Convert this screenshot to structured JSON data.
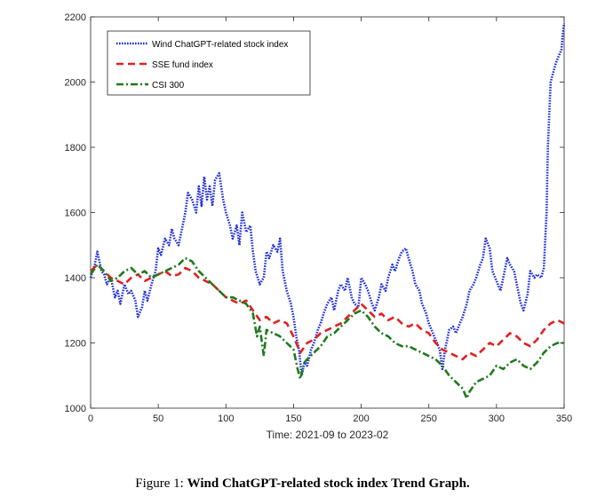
{
  "caption": {
    "prefix": "Figure 1:",
    "title": "Wind ChatGPT-related stock index Trend Graph."
  },
  "chart_data": {
    "type": "line",
    "title": "",
    "xlabel": "Time: 2021-09 to 2023-02",
    "ylabel": "",
    "xlim": [
      0,
      350
    ],
    "ylim": [
      1000,
      2200
    ],
    "xticks": [
      0,
      50,
      100,
      150,
      200,
      250,
      300,
      350
    ],
    "yticks": [
      1000,
      1200,
      1400,
      1600,
      1800,
      2000,
      2200
    ],
    "grid": false,
    "legend_position": "top-left",
    "series": [
      {
        "name": "Wind ChatGPT-related stock index",
        "color": "#1f2fd6",
        "dash": "dotted",
        "x": [
          0,
          3,
          5,
          8,
          10,
          12,
          15,
          18,
          20,
          22,
          25,
          28,
          30,
          33,
          35,
          38,
          40,
          42,
          45,
          48,
          50,
          52,
          55,
          58,
          60,
          62,
          65,
          68,
          70,
          72,
          75,
          78,
          80,
          82,
          84,
          86,
          88,
          90,
          92,
          95,
          98,
          100,
          103,
          105,
          108,
          110,
          112,
          115,
          118,
          120,
          122,
          125,
          128,
          130,
          132,
          135,
          138,
          140,
          142,
          145,
          148,
          150,
          152,
          154,
          156,
          158,
          160,
          163,
          165,
          168,
          170,
          173,
          175,
          178,
          180,
          183,
          185,
          188,
          190,
          193,
          195,
          198,
          200,
          203,
          205,
          208,
          210,
          213,
          215,
          218,
          220,
          223,
          225,
          228,
          230,
          233,
          235,
          238,
          240,
          243,
          245,
          248,
          250,
          253,
          255,
          258,
          260,
          262,
          265,
          268,
          270,
          273,
          275,
          278,
          280,
          283,
          285,
          288,
          290,
          292,
          295,
          297,
          300,
          303,
          305,
          308,
          310,
          313,
          315,
          318,
          320,
          323,
          325,
          328,
          330,
          333,
          335,
          337,
          338,
          340,
          342,
          344,
          346,
          348,
          349,
          350
        ],
        "values": [
          1400,
          1440,
          1480,
          1420,
          1410,
          1380,
          1400,
          1340,
          1360,
          1320,
          1380,
          1350,
          1360,
          1330,
          1280,
          1310,
          1360,
          1330,
          1380,
          1420,
          1490,
          1470,
          1520,
          1500,
          1550,
          1520,
          1500,
          1560,
          1600,
          1660,
          1640,
          1600,
          1680,
          1620,
          1710,
          1640,
          1680,
          1620,
          1700,
          1720,
          1640,
          1600,
          1560,
          1520,
          1560,
          1500,
          1600,
          1540,
          1560,
          1480,
          1420,
          1380,
          1400,
          1480,
          1460,
          1500,
          1480,
          1520,
          1420,
          1360,
          1320,
          1280,
          1220,
          1180,
          1100,
          1140,
          1130,
          1180,
          1200,
          1240,
          1260,
          1300,
          1320,
          1340,
          1300,
          1360,
          1380,
          1360,
          1400,
          1340,
          1320,
          1310,
          1400,
          1380,
          1360,
          1320,
          1300,
          1340,
          1380,
          1360,
          1400,
          1440,
          1420,
          1460,
          1480,
          1490,
          1460,
          1420,
          1380,
          1360,
          1320,
          1290,
          1260,
          1230,
          1210,
          1180,
          1120,
          1180,
          1240,
          1250,
          1230,
          1260,
          1280,
          1320,
          1360,
          1380,
          1400,
          1440,
          1460,
          1520,
          1490,
          1420,
          1390,
          1360,
          1400,
          1460,
          1440,
          1420,
          1380,
          1320,
          1300,
          1350,
          1420,
          1400,
          1410,
          1400,
          1430,
          1600,
          1800,
          2000,
          2030,
          2060,
          2080,
          2100,
          2150,
          2180
        ]
      },
      {
        "name": "SSE fund index",
        "color": "#e02020",
        "dash": "dashed",
        "x": [
          0,
          5,
          10,
          15,
          20,
          25,
          30,
          35,
          40,
          45,
          50,
          55,
          60,
          65,
          70,
          75,
          80,
          85,
          90,
          95,
          100,
          105,
          110,
          115,
          120,
          125,
          130,
          135,
          140,
          145,
          150,
          155,
          160,
          165,
          170,
          175,
          180,
          185,
          190,
          195,
          200,
          205,
          210,
          215,
          220,
          225,
          230,
          235,
          240,
          245,
          250,
          255,
          260,
          265,
          270,
          275,
          280,
          285,
          290,
          295,
          300,
          305,
          310,
          315,
          320,
          325,
          330,
          335,
          340,
          345,
          350
        ],
        "values": [
          1420,
          1440,
          1420,
          1400,
          1390,
          1380,
          1400,
          1410,
          1390,
          1400,
          1410,
          1420,
          1405,
          1410,
          1430,
          1420,
          1400,
          1390,
          1380,
          1360,
          1340,
          1330,
          1320,
          1330,
          1300,
          1270,
          1280,
          1260,
          1270,
          1260,
          1220,
          1170,
          1200,
          1210,
          1230,
          1240,
          1250,
          1260,
          1280,
          1300,
          1320,
          1300,
          1280,
          1290,
          1270,
          1280,
          1260,
          1250,
          1260,
          1240,
          1230,
          1200,
          1180,
          1170,
          1160,
          1150,
          1170,
          1160,
          1180,
          1200,
          1190,
          1210,
          1230,
          1220,
          1200,
          1190,
          1210,
          1240,
          1260,
          1270,
          1260
        ]
      },
      {
        "name": "CSI 300",
        "color": "#1e7a1e",
        "dash": "dash-dot",
        "x": [
          0,
          5,
          10,
          15,
          20,
          25,
          30,
          35,
          40,
          45,
          50,
          55,
          60,
          65,
          70,
          75,
          80,
          85,
          90,
          95,
          100,
          105,
          110,
          115,
          120,
          123,
          125,
          128,
          130,
          135,
          140,
          145,
          150,
          153,
          155,
          158,
          160,
          165,
          170,
          175,
          180,
          185,
          190,
          195,
          200,
          205,
          210,
          215,
          220,
          225,
          230,
          235,
          240,
          245,
          250,
          255,
          260,
          265,
          270,
          275,
          278,
          280,
          285,
          290,
          295,
          300,
          305,
          310,
          315,
          320,
          325,
          330,
          335,
          340,
          345,
          350
        ],
        "values": [
          1410,
          1440,
          1420,
          1390,
          1400,
          1420,
          1430,
          1410,
          1420,
          1400,
          1410,
          1420,
          1430,
          1440,
          1460,
          1450,
          1420,
          1400,
          1380,
          1360,
          1340,
          1340,
          1330,
          1320,
          1290,
          1220,
          1250,
          1160,
          1240,
          1230,
          1220,
          1200,
          1180,
          1120,
          1090,
          1140,
          1150,
          1170,
          1190,
          1220,
          1230,
          1250,
          1270,
          1290,
          1300,
          1280,
          1250,
          1230,
          1220,
          1200,
          1190,
          1190,
          1180,
          1170,
          1160,
          1150,
          1130,
          1100,
          1080,
          1060,
          1030,
          1050,
          1080,
          1090,
          1100,
          1130,
          1120,
          1140,
          1150,
          1130,
          1120,
          1140,
          1170,
          1190,
          1200,
          1200
        ]
      }
    ]
  }
}
